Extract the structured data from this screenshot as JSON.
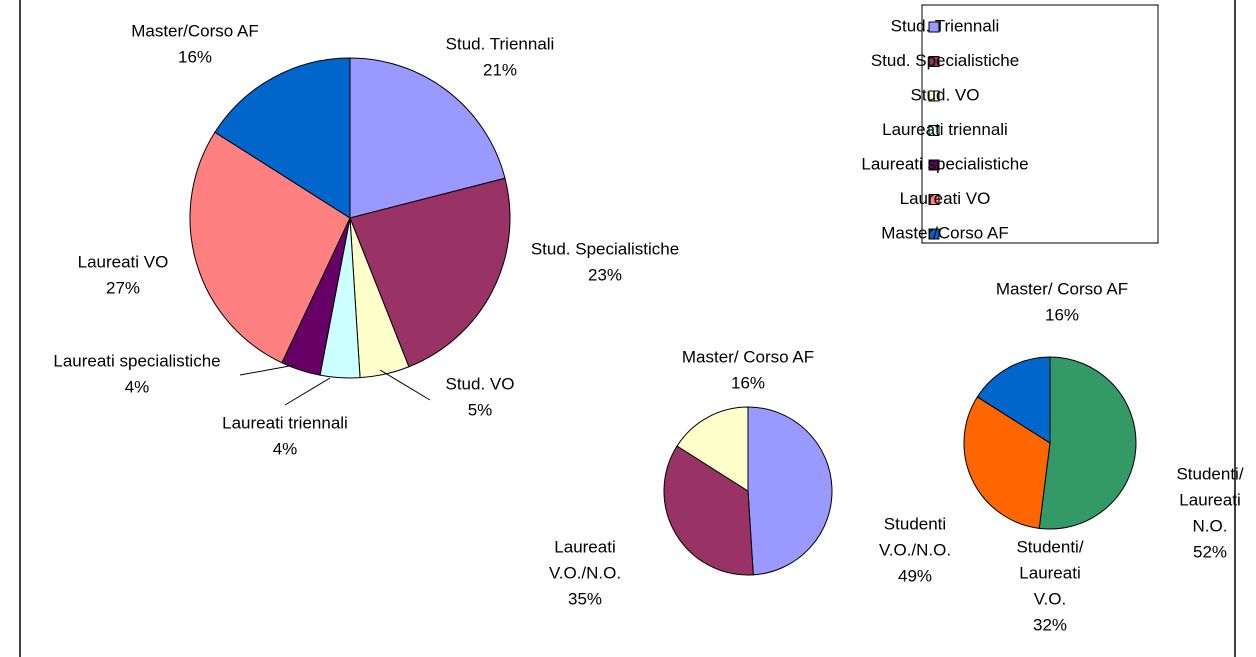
{
  "chart_data": [
    {
      "type": "pie",
      "legend": "top-right",
      "categories": [
        "Stud. Triennali",
        "Stud. Specialistiche",
        "Stud. VO",
        "Laureati triennali",
        "Laureati specialistiche",
        "Laureati VO",
        "Master/Corso AF"
      ],
      "values": [
        21,
        23,
        5,
        4,
        4,
        27,
        16
      ],
      "value_labels": [
        "21%",
        "23%",
        "5%",
        "4%",
        "4%",
        "27%",
        "16%"
      ],
      "colors": [
        "#9999ff",
        "#993366",
        "#ffffcc",
        "#ccffff",
        "#660066",
        "#ff8080",
        "#0066cc"
      ]
    },
    {
      "type": "pie",
      "categories": [
        [
          "Studenti",
          "V.O./N.O."
        ],
        [
          "Laureati",
          "V.O./N.O."
        ],
        [
          "Master/ Corso AF"
        ]
      ],
      "values": [
        49,
        35,
        16
      ],
      "value_labels": [
        "49%",
        "35%",
        "16%"
      ],
      "colors": [
        "#9999ff",
        "#993366",
        "#ffffcc"
      ]
    },
    {
      "type": "pie",
      "categories": [
        [
          "Studenti/",
          "Laureati",
          "N.O."
        ],
        [
          "Studenti/",
          "Laureati",
          "V.O."
        ],
        [
          "Master/ Corso AF"
        ]
      ],
      "values": [
        52,
        32,
        16
      ],
      "value_labels": [
        "52%",
        "32%",
        "16%"
      ],
      "colors": [
        "#339966",
        "#ff6600",
        "#0066cc"
      ]
    }
  ]
}
